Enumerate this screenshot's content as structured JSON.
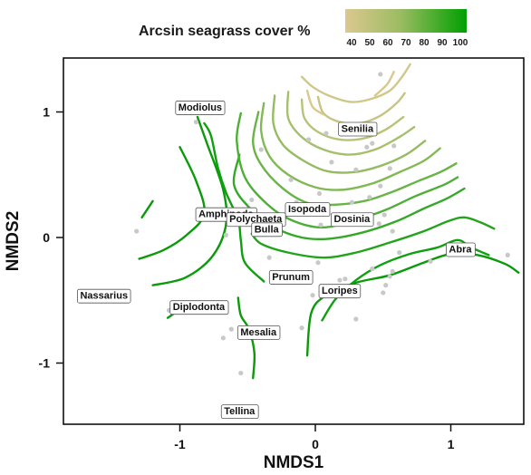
{
  "chart_data": {
    "type": "scatter",
    "xlabel": "NMDS1",
    "ylabel": "NMDS2",
    "xlim": [
      -1.75,
      1.5
    ],
    "ylim": [
      -1.5,
      1.42
    ],
    "x_ticks": [
      -1,
      0,
      1
    ],
    "x_tick_labels": [
      "-1",
      "0",
      "1"
    ],
    "y_ticks": [
      -1,
      0,
      1
    ],
    "y_tick_labels": [
      "-1",
      "0",
      "1"
    ],
    "grid": false,
    "legend": {
      "title": "Arcsin seagrass cover %",
      "placement": "top",
      "ticks": [
        "40",
        "50",
        "60",
        "70",
        "80",
        "90",
        "100"
      ],
      "colors": [
        "#dcc88f",
        "#00a000"
      ]
    },
    "species": [
      {
        "label": "Modiolus",
        "x": -0.85,
        "y": 1.04
      },
      {
        "label": "Senilia",
        "x": 0.31,
        "y": 0.87
      },
      {
        "label": "Isopoda",
        "x": -0.06,
        "y": 0.23
      },
      {
        "label": "Dosinia",
        "x": 0.27,
        "y": 0.15
      },
      {
        "label": "Amphipoda",
        "x": -0.66,
        "y": 0.19
      },
      {
        "label": "Polychaeta",
        "x": -0.44,
        "y": 0.15
      },
      {
        "label": "Bulla",
        "x": -0.36,
        "y": 0.07
      },
      {
        "label": "Abra",
        "x": 1.07,
        "y": -0.09
      },
      {
        "label": "Prunum",
        "x": -0.18,
        "y": -0.31
      },
      {
        "label": "Loripes",
        "x": 0.18,
        "y": -0.42
      },
      {
        "label": "Nassarius",
        "x": -1.56,
        "y": -0.46
      },
      {
        "label": "Diplodonta",
        "x": -0.86,
        "y": -0.55
      },
      {
        "label": "Mesalia",
        "x": -0.42,
        "y": -0.75
      },
      {
        "label": "Tellina",
        "x": -0.56,
        "y": -1.38
      }
    ],
    "sites": [
      {
        "x": -1.32,
        "y": 0.05
      },
      {
        "x": -1.08,
        "y": -0.58
      },
      {
        "x": -0.88,
        "y": 0.92
      },
      {
        "x": -0.68,
        "y": -0.8
      },
      {
        "x": -0.62,
        "y": -0.73
      },
      {
        "x": -0.66,
        "y": 0.02
      },
      {
        "x": -0.55,
        "y": -1.08
      },
      {
        "x": -0.47,
        "y": 0.3
      },
      {
        "x": -0.4,
        "y": 0.7
      },
      {
        "x": -0.34,
        "y": -0.16
      },
      {
        "x": -0.14,
        "y": 0.28
      },
      {
        "x": -0.1,
        "y": -0.72
      },
      {
        "x": -0.05,
        "y": 0.78
      },
      {
        "x": -0.02,
        "y": -0.46
      },
      {
        "x": 0.03,
        "y": 0.35
      },
      {
        "x": 0.08,
        "y": 0.83
      },
      {
        "x": 0.18,
        "y": -0.34
      },
      {
        "x": 0.22,
        "y": -0.33
      },
      {
        "x": 0.27,
        "y": 0.28
      },
      {
        "x": 0.3,
        "y": 0.54
      },
      {
        "x": 0.38,
        "y": 0.72
      },
      {
        "x": 0.4,
        "y": 0.32
      },
      {
        "x": 0.42,
        "y": -0.25
      },
      {
        "x": 0.47,
        "y": 0.11
      },
      {
        "x": 0.42,
        "y": 0.75
      },
      {
        "x": 0.48,
        "y": 0.41
      },
      {
        "x": 0.51,
        "y": 0.18
      },
      {
        "x": 0.55,
        "y": 0.55
      },
      {
        "x": 0.58,
        "y": 0.73
      },
      {
        "x": 0.57,
        "y": 0.05
      },
      {
        "x": 0.48,
        "y": 1.3
      },
      {
        "x": 0.52,
        "y": -0.38
      },
      {
        "x": 0.55,
        "y": -0.31
      },
      {
        "x": 0.57,
        "y": -0.27
      },
      {
        "x": 0.62,
        "y": -0.12
      },
      {
        "x": 0.85,
        "y": -0.19
      },
      {
        "x": 0.3,
        "y": -0.65
      },
      {
        "x": 0.5,
        "y": -0.44
      },
      {
        "x": 0.04,
        "y": 0.1
      },
      {
        "x": 0.02,
        "y": -0.2
      },
      {
        "x": -0.18,
        "y": 0.46
      },
      {
        "x": 0.12,
        "y": 0.6
      },
      {
        "x": 1.42,
        "y": -0.14
      }
    ],
    "contours": [
      {
        "level": 100,
        "color": "#0a9a0a",
        "points": [
          [
            -1.28,
            0.16
          ],
          [
            -1.2,
            0.29
          ]
        ]
      },
      {
        "level": 100,
        "color": "#0a9a0a",
        "points": [
          [
            -1.3,
            -0.17
          ],
          [
            -1.12,
            -0.1
          ],
          [
            -0.95,
            0.02
          ],
          [
            -0.82,
            0.19
          ],
          [
            -0.88,
            0.45
          ],
          [
            -1.0,
            0.72
          ]
        ]
      },
      {
        "level": 100,
        "color": "#0a9a0a",
        "points": [
          [
            -1.2,
            -0.38
          ],
          [
            -0.96,
            -0.32
          ],
          [
            -0.76,
            -0.15
          ],
          [
            -0.66,
            0.1
          ],
          [
            -0.68,
            0.38
          ],
          [
            -0.8,
            0.75
          ],
          [
            -0.87,
            0.96
          ]
        ]
      },
      {
        "level": 100,
        "color": "#0a9a0a",
        "points": [
          [
            -1.09,
            -0.64
          ],
          [
            -0.96,
            -0.55
          ],
          [
            -0.87,
            -0.53
          ],
          [
            -0.72,
            -0.56
          ]
        ]
      },
      {
        "level": 100,
        "color": "#0a9a0a",
        "points": [
          [
            -0.46,
            -1.12
          ],
          [
            -0.45,
            -0.92
          ],
          [
            -0.49,
            -0.73
          ],
          [
            -0.55,
            -0.62
          ],
          [
            -0.57,
            -0.48
          ]
        ]
      },
      {
        "level": 100,
        "color": "#0a9a0a",
        "points": [
          [
            -0.06,
            -0.94
          ],
          [
            -0.03,
            -0.6
          ],
          [
            0.08,
            -0.46
          ],
          [
            0.3,
            -0.36
          ],
          [
            0.55,
            -0.3
          ],
          [
            0.8,
            -0.2
          ],
          [
            1.0,
            -0.13
          ],
          [
            1.2,
            -0.14
          ],
          [
            1.4,
            -0.21
          ],
          [
            1.5,
            -0.28
          ]
        ]
      },
      {
        "level": 95,
        "color": "#0fa00f",
        "points": [
          [
            -0.38,
            -0.35
          ],
          [
            -0.52,
            -0.2
          ],
          [
            -0.55,
            -0.02
          ],
          [
            -0.57,
            0.14
          ],
          [
            -0.66,
            0.36
          ],
          [
            -0.72,
            0.56
          ],
          [
            -0.77,
            0.81
          ],
          [
            -0.82,
            0.91
          ]
        ]
      },
      {
        "level": 95,
        "color": "#0fa00f",
        "points": [
          [
            0.05,
            -0.66
          ],
          [
            0.15,
            -0.49
          ],
          [
            0.3,
            -0.34
          ],
          [
            0.48,
            -0.22
          ],
          [
            0.7,
            -0.13
          ],
          [
            0.9,
            -0.08
          ],
          [
            1.05,
            -0.02
          ],
          [
            1.15,
            -0.08
          ],
          [
            1.28,
            -0.14
          ]
        ]
      },
      {
        "level": 92,
        "color": "#22a41a",
        "points": [
          [
            -0.47,
            0.03
          ],
          [
            -0.4,
            -0.05
          ],
          [
            -0.2,
            -0.12
          ],
          [
            0.06,
            -0.16
          ],
          [
            0.3,
            -0.12
          ],
          [
            0.55,
            -0.04
          ],
          [
            0.8,
            0.05
          ],
          [
            0.98,
            0.13
          ],
          [
            1.1,
            0.16
          ],
          [
            1.22,
            0.12
          ],
          [
            1.32,
            0.07
          ]
        ]
      },
      {
        "level": 88,
        "color": "#34a928",
        "points": [
          [
            -0.56,
            0.66
          ],
          [
            -0.6,
            0.42
          ],
          [
            -0.48,
            0.23
          ],
          [
            -0.3,
            0.08
          ],
          [
            -0.1,
            0.0
          ],
          [
            0.1,
            -0.01
          ],
          [
            0.35,
            0.04
          ],
          [
            0.6,
            0.13
          ],
          [
            0.8,
            0.23
          ],
          [
            0.97,
            0.31
          ],
          [
            1.1,
            0.39
          ]
        ]
      },
      {
        "level": 84,
        "color": "#4eaf37",
        "points": [
          [
            -0.55,
            0.99
          ],
          [
            -0.58,
            0.77
          ],
          [
            -0.52,
            0.48
          ],
          [
            -0.36,
            0.27
          ],
          [
            -0.18,
            0.14
          ],
          [
            0.05,
            0.08
          ],
          [
            0.3,
            0.14
          ],
          [
            0.52,
            0.22
          ],
          [
            0.74,
            0.33
          ],
          [
            0.95,
            0.42
          ],
          [
            1.05,
            0.48
          ]
        ]
      },
      {
        "level": 80,
        "color": "#69b446",
        "points": [
          [
            -0.42,
            1.0
          ],
          [
            -0.46,
            0.76
          ],
          [
            -0.4,
            0.58
          ],
          [
            -0.25,
            0.4
          ],
          [
            -0.07,
            0.28
          ],
          [
            0.12,
            0.26
          ],
          [
            0.36,
            0.29
          ],
          [
            0.56,
            0.36
          ],
          [
            0.76,
            0.45
          ],
          [
            0.92,
            0.52
          ],
          [
            1.04,
            0.59
          ]
        ]
      },
      {
        "level": 76,
        "color": "#82b955",
        "points": [
          [
            -0.38,
            1.07
          ],
          [
            -0.4,
            0.85
          ],
          [
            -0.34,
            0.65
          ],
          [
            -0.2,
            0.5
          ],
          [
            0.0,
            0.4
          ],
          [
            0.2,
            0.38
          ],
          [
            0.42,
            0.43
          ],
          [
            0.62,
            0.52
          ],
          [
            0.8,
            0.61
          ],
          [
            0.92,
            0.71
          ]
        ]
      },
      {
        "level": 72,
        "color": "#95bc61",
        "points": [
          [
            -0.3,
            1.13
          ],
          [
            -0.31,
            0.91
          ],
          [
            -0.24,
            0.74
          ],
          [
            -0.1,
            0.62
          ],
          [
            0.08,
            0.53
          ],
          [
            0.28,
            0.52
          ],
          [
            0.48,
            0.57
          ],
          [
            0.67,
            0.66
          ],
          [
            0.81,
            0.77
          ]
        ]
      },
      {
        "level": 68,
        "color": "#a6bf6b",
        "points": [
          [
            -0.2,
            1.16
          ],
          [
            -0.2,
            0.95
          ],
          [
            -0.1,
            0.8
          ],
          [
            0.06,
            0.7
          ],
          [
            0.25,
            0.66
          ],
          [
            0.44,
            0.7
          ],
          [
            0.62,
            0.8
          ],
          [
            0.73,
            0.88
          ]
        ]
      },
      {
        "level": 62,
        "color": "#b8c377",
        "points": [
          [
            -0.1,
            1.1
          ],
          [
            -0.08,
            0.95
          ],
          [
            0.02,
            0.84
          ],
          [
            0.18,
            0.78
          ],
          [
            0.36,
            0.79
          ],
          [
            0.52,
            0.86
          ],
          [
            0.65,
            0.96
          ]
        ]
      },
      {
        "level": 56,
        "color": "#c6c582",
        "points": [
          [
            0.02,
            1.12
          ],
          [
            0.06,
            0.99
          ],
          [
            0.18,
            0.92
          ],
          [
            0.33,
            0.91
          ],
          [
            0.48,
            0.97
          ],
          [
            0.6,
            1.07
          ],
          [
            0.66,
            1.15
          ]
        ]
      },
      {
        "level": 50,
        "color": "#d0c88a",
        "points": [
          [
            -0.1,
            1.28
          ],
          [
            -0.02,
            1.2
          ],
          [
            0.1,
            1.13
          ],
          [
            0.26,
            1.08
          ],
          [
            0.4,
            1.1
          ],
          [
            0.55,
            1.17
          ],
          [
            0.64,
            1.28
          ],
          [
            0.7,
            1.38
          ]
        ]
      },
      {
        "level": 44,
        "color": "#d8c98e",
        "points": [
          [
            -0.06,
            1.17
          ],
          [
            -0.02,
            1.04
          ],
          [
            0.06,
            0.98
          ]
        ]
      },
      {
        "level": 44,
        "color": "#d8c98e",
        "points": [
          [
            0.58,
            1.32
          ],
          [
            0.53,
            1.22
          ],
          [
            0.44,
            1.13
          ]
        ]
      }
    ]
  }
}
